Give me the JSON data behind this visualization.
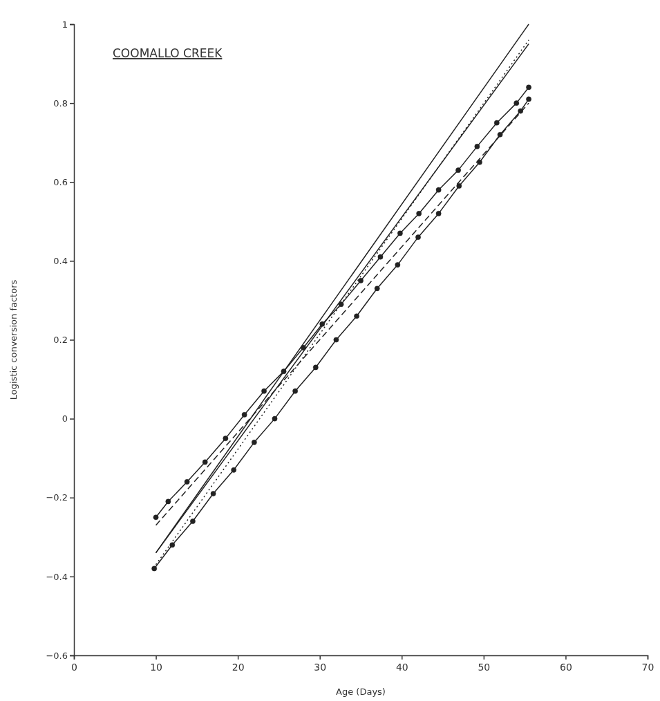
{
  "chart_data": {
    "type": "line",
    "title": "COOMALLO  CREEK",
    "xlabel": "Age  (Days)",
    "ylabel": "Logistic conversion factors",
    "xlim": [
      0,
      70
    ],
    "ylim": [
      -0.6,
      1.0
    ],
    "xticks": [
      0,
      10,
      20,
      30,
      40,
      50,
      60,
      70
    ],
    "yticks": [
      -0.6,
      -0.4,
      -0.2,
      0,
      0.2,
      0.4,
      0.6,
      0.8,
      1.0
    ],
    "series": [
      {
        "color": "#222222",
        "line_style": "solid",
        "marker": "none",
        "x": [
          10,
          55.5
        ],
        "values": [
          -0.34,
          1.0
        ]
      },
      {
        "color": "#222222",
        "line_style": "solid",
        "marker": "none",
        "x": [
          10,
          55.5
        ],
        "values": [
          -0.34,
          0.95
        ]
      },
      {
        "color": "#222222",
        "line_style": "dotted",
        "marker": "none",
        "x": [
          10,
          55.5
        ],
        "values": [
          -0.37,
          0.96
        ]
      },
      {
        "color": "#222222",
        "line_style": "solid",
        "marker": "circle",
        "x": [
          10,
          11.5,
          13.8,
          16,
          18.5,
          20.8,
          23.2,
          25.6,
          28,
          30.3,
          32.6,
          35,
          37.4,
          39.8,
          42.1,
          44.5,
          46.9,
          49.2,
          51.6,
          54,
          55.5
        ],
        "values": [
          -0.25,
          -0.21,
          -0.16,
          -0.11,
          -0.05,
          0.01,
          0.07,
          0.12,
          0.18,
          0.24,
          0.29,
          0.35,
          0.41,
          0.47,
          0.52,
          0.58,
          0.63,
          0.69,
          0.75,
          0.8,
          0.84
        ]
      },
      {
        "color": "#222222",
        "line_style": "dashed",
        "marker": "none",
        "x": [
          10,
          55.5
        ],
        "values": [
          -0.27,
          0.8
        ]
      },
      {
        "color": "#222222",
        "line_style": "solid",
        "marker": "circle",
        "x": [
          9.8,
          12,
          14.5,
          17,
          19.5,
          22,
          24.5,
          27,
          29.5,
          32,
          34.5,
          37,
          39.5,
          42,
          44.5,
          47,
          49.5,
          52,
          54.5,
          55.5
        ],
        "values": [
          -0.38,
          -0.32,
          -0.26,
          -0.19,
          -0.13,
          -0.06,
          0.0,
          0.07,
          0.13,
          0.2,
          0.26,
          0.33,
          0.39,
          0.46,
          0.52,
          0.59,
          0.65,
          0.72,
          0.78,
          0.81
        ]
      }
    ]
  }
}
